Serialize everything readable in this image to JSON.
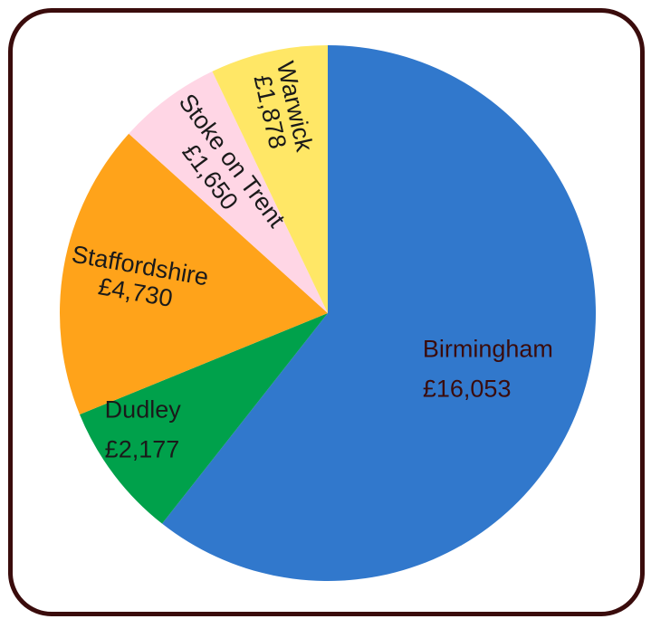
{
  "chart_data": {
    "type": "pie",
    "title": "",
    "currency": "£",
    "slices": [
      {
        "label": "Birmingham",
        "value": 16053,
        "value_label": "£16,053",
        "color": "#3178cc",
        "text_color": "#3a0c0c"
      },
      {
        "label": "Dudley",
        "value": 2177,
        "value_label": "£2,177",
        "color": "#00a14b",
        "text_color": "#1a1a1a"
      },
      {
        "label": "Staffordshire",
        "value": 4730,
        "value_label": "£4,730",
        "color": "#ffa31a",
        "text_color": "#1a1a1a"
      },
      {
        "label": "Stoke on Trent",
        "value": 1650,
        "value_label": "£1,650",
        "color": "#ffd6e5",
        "text_color": "#1a1a1a"
      },
      {
        "label": "Warwick",
        "value": 1878,
        "value_label": "£1,878",
        "color": "#ffe766",
        "text_color": "#1a1a1a"
      }
    ],
    "start_angle_deg": 0,
    "direction": "clockwise",
    "legend": "none"
  }
}
